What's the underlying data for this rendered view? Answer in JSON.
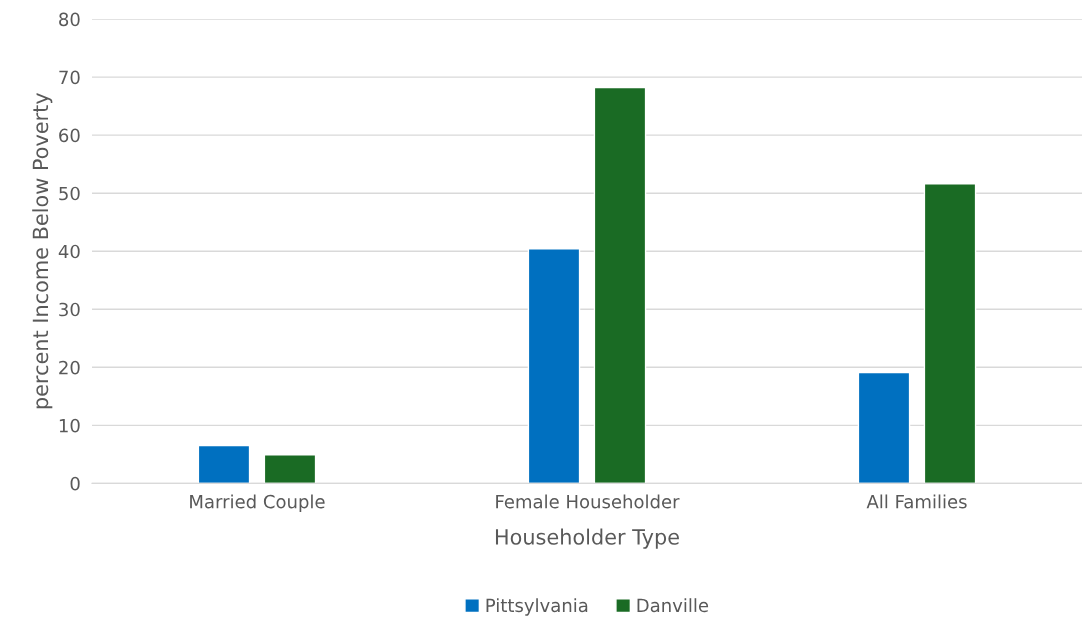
{
  "chart_data": {
    "type": "bar",
    "xlabel": "Householder Type",
    "ylabel": "percent Income Below Poverty",
    "categories": [
      "Married Couple",
      "Female Householder",
      "All Families"
    ],
    "series": [
      {
        "name": "Pittsylvania",
        "color": "#0070c0",
        "values": [
          6.5,
          40.4,
          19.1
        ]
      },
      {
        "name": "Danville",
        "color": "#1a6b24",
        "values": [
          4.9,
          68.2,
          51.6
        ]
      }
    ],
    "ylim": [
      0,
      80
    ],
    "yticks": [
      0,
      10,
      20,
      30,
      40,
      50,
      60,
      70,
      80
    ],
    "grid": "y",
    "legend": "bottom"
  }
}
